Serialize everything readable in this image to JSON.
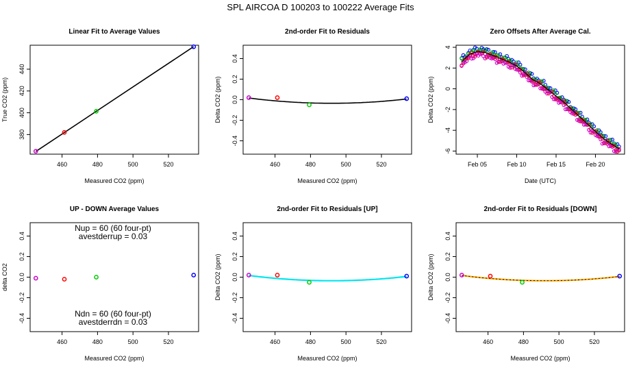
{
  "page_title": "SPL    AIRCOA D    100203 to 100222    Average Fits",
  "chart_data": [
    {
      "id": "linear",
      "type": "scatter",
      "title": "Linear Fit to Average Values",
      "xlabel": "Measured CO2 (ppm)",
      "ylabel": "True CO2 (ppm)",
      "xlim": [
        442,
        537
      ],
      "ylim": [
        362,
        462
      ],
      "xticks": [
        {
          "v": 460,
          "label": "460"
        },
        {
          "v": 480,
          "label": "480"
        },
        {
          "v": 500,
          "label": "500"
        },
        {
          "v": 520,
          "label": "520"
        }
      ],
      "yticks": [
        {
          "v": 380,
          "label": "380"
        },
        {
          "v": 400,
          "label": "400"
        },
        {
          "v": 420,
          "label": "420"
        },
        {
          "v": 440,
          "label": "440"
        }
      ],
      "points": [
        {
          "x": 445.2,
          "y": 364.7,
          "color": "#cc00cc"
        },
        {
          "x": 461.3,
          "y": 382.0,
          "color": "#ff0000"
        },
        {
          "x": 479.3,
          "y": 401.4,
          "color": "#00cc00"
        },
        {
          "x": 534.2,
          "y": 460.6,
          "color": "#0000ff"
        }
      ],
      "fit": {
        "type": "line",
        "x0": 445.2,
        "y0": 364.5,
        "x1": 534.2,
        "y1": 460.7,
        "color": "#000000"
      }
    },
    {
      "id": "resid",
      "type": "scatter",
      "title": "2nd-order Fit to Residuals",
      "xlabel": "Measured CO2 (ppm)",
      "ylabel": "Delta CO2 (ppm)",
      "xlim": [
        442,
        537
      ],
      "ylim": [
        -0.53,
        0.53
      ],
      "xticks": [
        {
          "v": 460,
          "label": "460"
        },
        {
          "v": 480,
          "label": "480"
        },
        {
          "v": 500,
          "label": "500"
        },
        {
          "v": 520,
          "label": "520"
        }
      ],
      "yticks": [
        {
          "v": -0.4,
          "label": "-0.4"
        },
        {
          "v": -0.2,
          "label": "-0.2"
        },
        {
          "v": 0,
          "label": "0.0"
        },
        {
          "v": 0.2,
          "label": "0.2"
        },
        {
          "v": 0.4,
          "label": "0.4"
        }
      ],
      "points": [
        {
          "x": 445.2,
          "y": 0.02,
          "color": "#cc00cc"
        },
        {
          "x": 461.3,
          "y": 0.02,
          "color": "#ff0000"
        },
        {
          "x": 479.3,
          "y": -0.05,
          "color": "#00cc00"
        },
        {
          "x": 534.2,
          "y": 0.01,
          "color": "#0000ff"
        }
      ],
      "fit": {
        "type": "quadratic",
        "a": 2.35e-05,
        "vertex_x": 492,
        "min_y": -0.035,
        "x_from": 445.2,
        "x_to": 534.2,
        "color": "#000000"
      }
    },
    {
      "id": "zero",
      "type": "scatter",
      "title": "Zero Offsets After Average Cal.",
      "xlabel": "Date (UTC)",
      "ylabel": "Delta CO2 (ppm)",
      "xlim": [
        2.3,
        23.7
      ],
      "ylim": [
        -6.3,
        4.2
      ],
      "xticks": [
        {
          "v": 5,
          "label": "Feb 05"
        },
        {
          "v": 10,
          "label": "Feb 10"
        },
        {
          "v": 15,
          "label": "Feb 15"
        },
        {
          "v": 20,
          "label": "Feb 20"
        }
      ],
      "yticks": [
        {
          "v": -6,
          "label": "-6"
        },
        {
          "v": -4,
          "label": "-4"
        },
        {
          "v": -2,
          "label": "-2"
        },
        {
          "v": 0,
          "label": "0"
        },
        {
          "v": 2,
          "label": "2"
        },
        {
          "v": 4,
          "label": "4"
        }
      ],
      "trend": [
        [
          3.0,
          2.6
        ],
        [
          4.0,
          3.3
        ],
        [
          5.0,
          3.6
        ],
        [
          6.0,
          3.5
        ],
        [
          7.0,
          3.2
        ],
        [
          8.0,
          2.9
        ],
        [
          9.0,
          2.6
        ],
        [
          10.0,
          2.2
        ],
        [
          11.0,
          1.6
        ],
        [
          12.0,
          0.9
        ],
        [
          13.0,
          0.5
        ],
        [
          14.0,
          -0.1
        ],
        [
          15.0,
          -0.7
        ],
        [
          16.0,
          -1.3
        ],
        [
          17.0,
          -2.0
        ],
        [
          18.0,
          -2.7
        ],
        [
          19.0,
          -3.4
        ],
        [
          20.0,
          -4.1
        ],
        [
          21.0,
          -4.8
        ],
        [
          22.0,
          -5.3
        ],
        [
          23.0,
          -5.8
        ]
      ],
      "series": [
        {
          "name": "blue",
          "color": "#0000ff",
          "offset": 0.25
        },
        {
          "name": "green",
          "color": "#00cc00",
          "offset": 0.1
        },
        {
          "name": "red",
          "color": "#ff0000",
          "offset": -0.15
        },
        {
          "name": "magenta",
          "color": "#cc00cc",
          "offset": -0.3
        }
      ]
    },
    {
      "id": "updown",
      "type": "scatter",
      "title": "UP - DOWN Average Values",
      "xlabel": "Measured CO2 (ppm)",
      "ylabel": "delta CO2",
      "xlim": [
        442,
        537
      ],
      "ylim": [
        -0.53,
        0.53
      ],
      "xticks": [
        {
          "v": 460,
          "label": "460"
        },
        {
          "v": 480,
          "label": "480"
        },
        {
          "v": 500,
          "label": "500"
        },
        {
          "v": 520,
          "label": "520"
        }
      ],
      "yticks": [
        {
          "v": -0.4,
          "label": "-0.4"
        },
        {
          "v": -0.2,
          "label": "-0.2"
        },
        {
          "v": 0,
          "label": "0.0"
        },
        {
          "v": 0.2,
          "label": "0.2"
        },
        {
          "v": 0.4,
          "label": "0.4"
        }
      ],
      "points": [
        {
          "x": 445.2,
          "y": -0.01,
          "color": "#cc00cc"
        },
        {
          "x": 461.3,
          "y": -0.02,
          "color": "#ff0000"
        },
        {
          "x": 479.3,
          "y": 0.0,
          "color": "#00cc00"
        },
        {
          "x": 534.2,
          "y": 0.02,
          "color": "#0000ff"
        }
      ],
      "annotations": [
        {
          "text": "Nup = 60 (60 four-pt)",
          "pos": "top-1"
        },
        {
          "text": "avestderrup =  0.03",
          "pos": "top-2"
        },
        {
          "text": "Ndn = 60 (60 four-pt)",
          "pos": "bottom-1"
        },
        {
          "text": "avestderrdn =  0.03",
          "pos": "bottom-2"
        }
      ]
    },
    {
      "id": "resid_up",
      "type": "scatter",
      "title": "2nd-order Fit to Residuals [UP]",
      "xlabel": "Measured CO2 (ppm)",
      "ylabel": "Delta CO2 (ppm)",
      "xlim": [
        442,
        537
      ],
      "ylim": [
        -0.53,
        0.53
      ],
      "xticks": [
        {
          "v": 460,
          "label": "460"
        },
        {
          "v": 480,
          "label": "480"
        },
        {
          "v": 500,
          "label": "500"
        },
        {
          "v": 520,
          "label": "520"
        }
      ],
      "yticks": [
        {
          "v": -0.4,
          "label": "-0.4"
        },
        {
          "v": -0.2,
          "label": "-0.2"
        },
        {
          "v": 0,
          "label": "0.0"
        },
        {
          "v": 0.2,
          "label": "0.2"
        },
        {
          "v": 0.4,
          "label": "0.4"
        }
      ],
      "points": [
        {
          "x": 445.2,
          "y": 0.02,
          "color": "#cc00cc"
        },
        {
          "x": 461.3,
          "y": 0.02,
          "color": "#ff0000"
        },
        {
          "x": 479.3,
          "y": -0.05,
          "color": "#00cc00"
        },
        {
          "x": 534.2,
          "y": 0.01,
          "color": "#0000ff"
        }
      ],
      "fit": {
        "type": "quadratic",
        "a": 2.35e-05,
        "vertex_x": 492,
        "min_y": -0.035,
        "x_from": 445.2,
        "x_to": 534.2,
        "color": "#00e5ee"
      }
    },
    {
      "id": "resid_down",
      "type": "scatter",
      "title": "2nd-order Fit to Residuals [DOWN]",
      "xlabel": "Measured CO2 (ppm)",
      "ylabel": "Delta CO2 (ppm)",
      "xlim": [
        442,
        537
      ],
      "ylim": [
        -0.53,
        0.53
      ],
      "xticks": [
        {
          "v": 460,
          "label": "460"
        },
        {
          "v": 480,
          "label": "480"
        },
        {
          "v": 500,
          "label": "500"
        },
        {
          "v": 520,
          "label": "520"
        }
      ],
      "yticks": [
        {
          "v": -0.4,
          "label": "-0.4"
        },
        {
          "v": -0.2,
          "label": "-0.2"
        },
        {
          "v": 0,
          "label": "0.0"
        },
        {
          "v": 0.2,
          "label": "0.2"
        },
        {
          "v": 0.4,
          "label": "0.4"
        }
      ],
      "points": [
        {
          "x": 445.2,
          "y": 0.02,
          "color": "#cc00cc"
        },
        {
          "x": 461.3,
          "y": 0.01,
          "color": "#ff0000"
        },
        {
          "x": 479.3,
          "y": -0.05,
          "color": "#00cc00"
        },
        {
          "x": 534.2,
          "y": 0.01,
          "color": "#0000ff"
        }
      ],
      "fit": {
        "type": "quadratic",
        "a": 2.35e-05,
        "vertex_x": 492,
        "min_y": -0.035,
        "x_from": 445.2,
        "x_to": 534.2,
        "color": "#ffa500",
        "dashed_overlay": "#000000"
      }
    }
  ]
}
